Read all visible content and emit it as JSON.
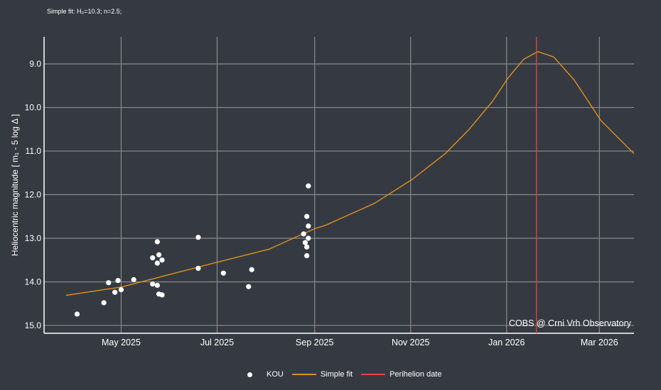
{
  "chart_data": {
    "type": "scatter",
    "subtitle": "Simple fit: H₀=10.3; n=2.5;",
    "ylabel": "Heliocentric magnitude [ m₁ - 5 log Δ ]",
    "xlabel": "",
    "x_range": [
      "2025-03-13",
      "2026-03-23"
    ],
    "ylim": [
      8.38,
      15.18
    ],
    "y_reversed": true,
    "grid": true,
    "y_ticks": [
      "9.0",
      "10.0",
      "11.0",
      "12.0",
      "13.0",
      "14.0",
      "15.0"
    ],
    "x_ticks": [
      {
        "date": "2025-05-01",
        "label": "May 2025"
      },
      {
        "date": "2025-07-01",
        "label": "Jul 2025"
      },
      {
        "date": "2025-09-01",
        "label": "Sep 2025"
      },
      {
        "date": "2025-11-01",
        "label": "Nov 2025"
      },
      {
        "date": "2026-01-01",
        "label": "Jan 2026"
      },
      {
        "date": "2026-03-01",
        "label": "Mar 2026"
      }
    ],
    "series": [
      {
        "name": "KOU",
        "kind": "scatter",
        "color": "#ffffff",
        "points": [
          [
            "2025-04-03",
            14.74
          ],
          [
            "2025-04-20",
            14.48
          ],
          [
            "2025-04-23",
            14.02
          ],
          [
            "2025-04-27",
            14.24
          ],
          [
            "2025-04-29",
            13.97
          ],
          [
            "2025-05-01",
            14.18
          ],
          [
            "2025-05-09",
            13.95
          ],
          [
            "2025-05-21",
            13.45
          ],
          [
            "2025-05-21",
            14.05
          ],
          [
            "2025-05-24",
            13.08
          ],
          [
            "2025-05-24",
            13.57
          ],
          [
            "2025-05-24",
            14.08
          ],
          [
            "2025-05-25",
            13.38
          ],
          [
            "2025-05-27",
            13.5
          ],
          [
            "2025-05-25",
            14.28
          ],
          [
            "2025-05-27",
            14.3
          ],
          [
            "2025-06-19",
            12.98
          ],
          [
            "2025-06-19",
            13.69
          ],
          [
            "2025-07-05",
            13.8
          ],
          [
            "2025-07-23",
            13.72
          ],
          [
            "2025-07-21",
            14.11
          ],
          [
            "2025-08-28",
            11.8
          ],
          [
            "2025-08-27",
            12.5
          ],
          [
            "2025-08-28",
            12.72
          ],
          [
            "2025-08-25",
            12.9
          ],
          [
            "2025-08-28",
            13.0
          ],
          [
            "2025-08-26",
            13.1
          ],
          [
            "2025-08-27",
            13.2
          ],
          [
            "2025-08-27",
            13.4
          ]
        ]
      },
      {
        "name": "Simple fit",
        "kind": "line",
        "color": "#e0901a",
        "points": [
          [
            "2025-03-27",
            14.31
          ],
          [
            "2025-05-01",
            14.12
          ],
          [
            "2025-07-01",
            13.55
          ],
          [
            "2025-08-03",
            13.25
          ],
          [
            "2025-09-01",
            12.78
          ],
          [
            "2025-09-08",
            12.7
          ],
          [
            "2025-10-09",
            12.2
          ],
          [
            "2025-11-02",
            11.65
          ],
          [
            "2025-11-23",
            11.06
          ],
          [
            "2025-12-08",
            10.51
          ],
          [
            "2025-12-23",
            9.86
          ],
          [
            "2026-01-02",
            9.32
          ],
          [
            "2026-01-12",
            8.89
          ],
          [
            "2026-01-21",
            8.72
          ],
          [
            "2026-01-31",
            8.84
          ],
          [
            "2026-02-13",
            9.37
          ],
          [
            "2026-03-02",
            10.3
          ],
          [
            "2026-03-23",
            11.06
          ]
        ]
      },
      {
        "name": "Perihelion date",
        "kind": "vline",
        "color": "#e8453c",
        "date": "2026-01-20"
      }
    ],
    "annotation": "COBS @ Crni Vrh Observatory",
    "legend_position": "bottom-center"
  }
}
